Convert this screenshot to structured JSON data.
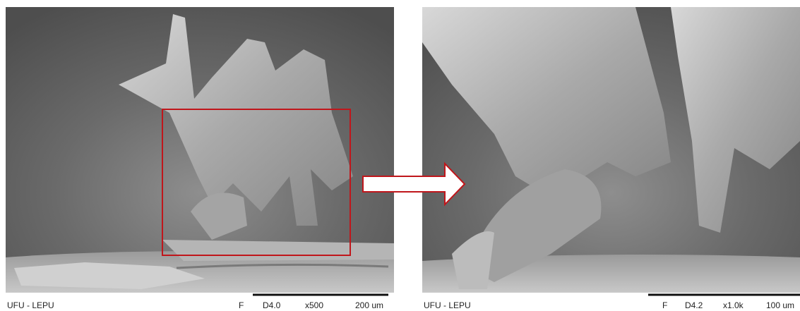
{
  "panels": [
    {
      "footer": {
        "label": "UFU - LEPU",
        "mode": "F",
        "distance": "D4.0",
        "magnification": "x500",
        "scale": "200 um"
      }
    },
    {
      "footer": {
        "label": "UFU - LEPU",
        "mode": "F",
        "distance": "D4.2",
        "magnification": "x1.0k",
        "scale": "100 um"
      }
    }
  ]
}
